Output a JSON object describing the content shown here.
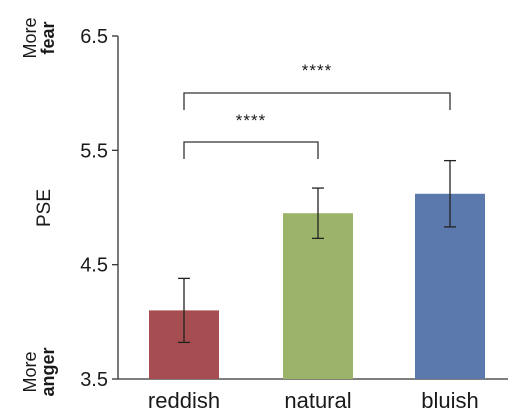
{
  "chart_data": {
    "type": "bar",
    "categories": [
      "reddish",
      "natural",
      "bluish"
    ],
    "values": [
      4.1,
      4.95,
      5.12
    ],
    "errors": [
      0.28,
      0.22,
      0.29
    ],
    "colors": [
      "#a64d51",
      "#9bb46a",
      "#5b79ad"
    ],
    "ylabel": "PSE",
    "ylim": [
      3.5,
      6.5
    ],
    "yticks": [
      "3.5",
      "4.5",
      "5.5",
      "6.5"
    ],
    "grid": false,
    "top_direction": [
      "More",
      "fear"
    ],
    "bottom_direction": [
      "More",
      "anger"
    ],
    "significance": [
      {
        "from": 0,
        "to": 1,
        "label": "****"
      },
      {
        "from": 0,
        "to": 2,
        "label": "****"
      }
    ]
  }
}
